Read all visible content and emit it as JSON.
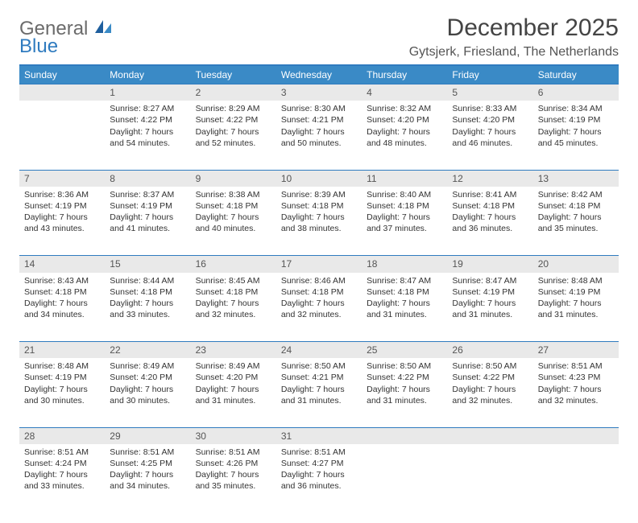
{
  "logo": {
    "line1": "General",
    "line2": "Blue"
  },
  "title": "December 2025",
  "location": "Gytsjerk, Friesland, The Netherlands",
  "colors": {
    "header_bg": "#3a8ac6",
    "header_text": "#ffffff",
    "daynum_bg": "#e9e9e9",
    "border_accent": "#2f7bbf",
    "body_text": "#333333",
    "logo_gray": "#6b6b6b",
    "logo_blue": "#2f7bbf",
    "page_bg": "#ffffff"
  },
  "weekdays": [
    "Sunday",
    "Monday",
    "Tuesday",
    "Wednesday",
    "Thursday",
    "Friday",
    "Saturday"
  ],
  "weeks": [
    [
      null,
      {
        "n": "1",
        "sr": "8:27 AM",
        "ss": "4:22 PM",
        "dl": "7 hours and 54 minutes."
      },
      {
        "n": "2",
        "sr": "8:29 AM",
        "ss": "4:22 PM",
        "dl": "7 hours and 52 minutes."
      },
      {
        "n": "3",
        "sr": "8:30 AM",
        "ss": "4:21 PM",
        "dl": "7 hours and 50 minutes."
      },
      {
        "n": "4",
        "sr": "8:32 AM",
        "ss": "4:20 PM",
        "dl": "7 hours and 48 minutes."
      },
      {
        "n": "5",
        "sr": "8:33 AM",
        "ss": "4:20 PM",
        "dl": "7 hours and 46 minutes."
      },
      {
        "n": "6",
        "sr": "8:34 AM",
        "ss": "4:19 PM",
        "dl": "7 hours and 45 minutes."
      }
    ],
    [
      {
        "n": "7",
        "sr": "8:36 AM",
        "ss": "4:19 PM",
        "dl": "7 hours and 43 minutes."
      },
      {
        "n": "8",
        "sr": "8:37 AM",
        "ss": "4:19 PM",
        "dl": "7 hours and 41 minutes."
      },
      {
        "n": "9",
        "sr": "8:38 AM",
        "ss": "4:18 PM",
        "dl": "7 hours and 40 minutes."
      },
      {
        "n": "10",
        "sr": "8:39 AM",
        "ss": "4:18 PM",
        "dl": "7 hours and 38 minutes."
      },
      {
        "n": "11",
        "sr": "8:40 AM",
        "ss": "4:18 PM",
        "dl": "7 hours and 37 minutes."
      },
      {
        "n": "12",
        "sr": "8:41 AM",
        "ss": "4:18 PM",
        "dl": "7 hours and 36 minutes."
      },
      {
        "n": "13",
        "sr": "8:42 AM",
        "ss": "4:18 PM",
        "dl": "7 hours and 35 minutes."
      }
    ],
    [
      {
        "n": "14",
        "sr": "8:43 AM",
        "ss": "4:18 PM",
        "dl": "7 hours and 34 minutes."
      },
      {
        "n": "15",
        "sr": "8:44 AM",
        "ss": "4:18 PM",
        "dl": "7 hours and 33 minutes."
      },
      {
        "n": "16",
        "sr": "8:45 AM",
        "ss": "4:18 PM",
        "dl": "7 hours and 32 minutes."
      },
      {
        "n": "17",
        "sr": "8:46 AM",
        "ss": "4:18 PM",
        "dl": "7 hours and 32 minutes."
      },
      {
        "n": "18",
        "sr": "8:47 AM",
        "ss": "4:18 PM",
        "dl": "7 hours and 31 minutes."
      },
      {
        "n": "19",
        "sr": "8:47 AM",
        "ss": "4:19 PM",
        "dl": "7 hours and 31 minutes."
      },
      {
        "n": "20",
        "sr": "8:48 AM",
        "ss": "4:19 PM",
        "dl": "7 hours and 31 minutes."
      }
    ],
    [
      {
        "n": "21",
        "sr": "8:48 AM",
        "ss": "4:19 PM",
        "dl": "7 hours and 30 minutes."
      },
      {
        "n": "22",
        "sr": "8:49 AM",
        "ss": "4:20 PM",
        "dl": "7 hours and 30 minutes."
      },
      {
        "n": "23",
        "sr": "8:49 AM",
        "ss": "4:20 PM",
        "dl": "7 hours and 31 minutes."
      },
      {
        "n": "24",
        "sr": "8:50 AM",
        "ss": "4:21 PM",
        "dl": "7 hours and 31 minutes."
      },
      {
        "n": "25",
        "sr": "8:50 AM",
        "ss": "4:22 PM",
        "dl": "7 hours and 31 minutes."
      },
      {
        "n": "26",
        "sr": "8:50 AM",
        "ss": "4:22 PM",
        "dl": "7 hours and 32 minutes."
      },
      {
        "n": "27",
        "sr": "8:51 AM",
        "ss": "4:23 PM",
        "dl": "7 hours and 32 minutes."
      }
    ],
    [
      {
        "n": "28",
        "sr": "8:51 AM",
        "ss": "4:24 PM",
        "dl": "7 hours and 33 minutes."
      },
      {
        "n": "29",
        "sr": "8:51 AM",
        "ss": "4:25 PM",
        "dl": "7 hours and 34 minutes."
      },
      {
        "n": "30",
        "sr": "8:51 AM",
        "ss": "4:26 PM",
        "dl": "7 hours and 35 minutes."
      },
      {
        "n": "31",
        "sr": "8:51 AM",
        "ss": "4:27 PM",
        "dl": "7 hours and 36 minutes."
      },
      null,
      null,
      null
    ]
  ],
  "labels": {
    "sunrise": "Sunrise:",
    "sunset": "Sunset:",
    "daylight": "Daylight:"
  }
}
